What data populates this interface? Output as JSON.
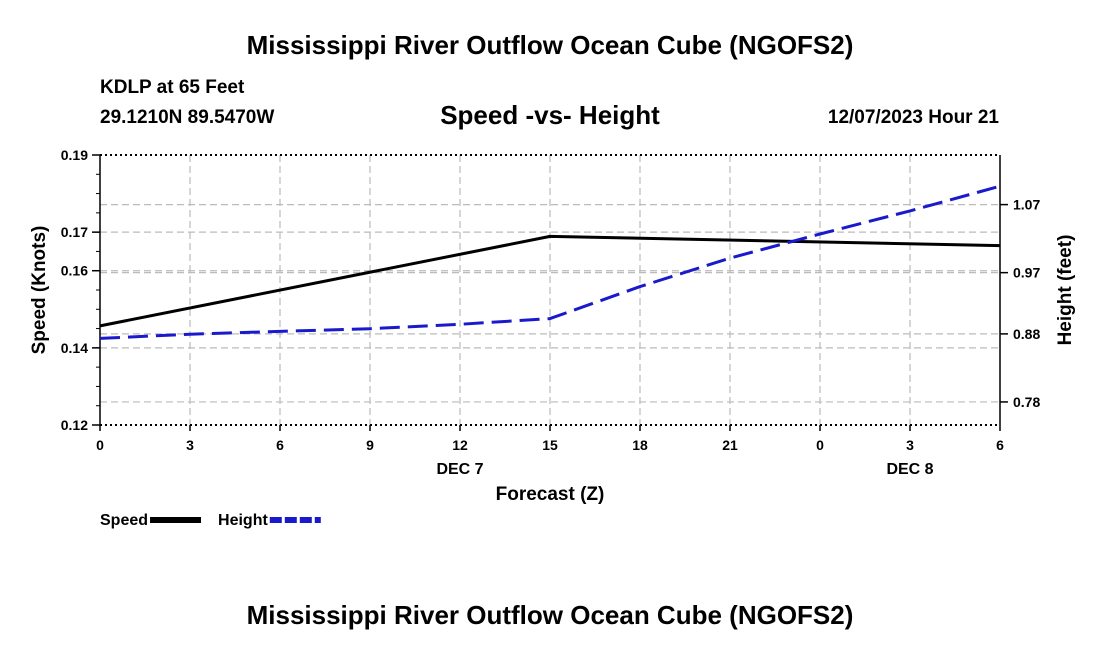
{
  "page": {
    "title": "Mississippi River Outflow Ocean Cube (NGOFS2)",
    "footer_title": "Mississippi River Outflow Ocean Cube (NGOFS2)"
  },
  "header": {
    "station": "KDLP at 65 Feet",
    "coords": "29.1210N  89.5470W",
    "subtitle": "Speed -vs- Height",
    "datetime": "12/07/2023 Hour 21"
  },
  "chart_data": {
    "type": "line",
    "title": "Speed -vs- Height",
    "xlabel": "Forecast (Z)",
    "ylabel_left": "Speed (Knots)",
    "ylabel_right": "Height (feet)",
    "x_ticks": [
      "0",
      "3",
      "6",
      "9",
      "12",
      "15",
      "18",
      "21",
      "0",
      "3",
      "6"
    ],
    "x_range_hours": [
      0,
      30
    ],
    "day_labels": [
      {
        "label": "DEC 7",
        "hour": 12
      },
      {
        "label": "DEC 8",
        "hour": 27
      }
    ],
    "y_left": {
      "range": [
        0.12,
        0.19
      ],
      "ticks": [
        0.12,
        0.14,
        0.16,
        0.17,
        0.19
      ],
      "tick_labels": [
        "0.12",
        "0.14",
        "0.16",
        "0.17",
        "0.19"
      ]
    },
    "y_right": {
      "range": [
        0.7461,
        1.1429
      ],
      "ticks": [
        0.78,
        0.88,
        0.97,
        1.07
      ],
      "tick_labels": [
        "0.78",
        "0.88",
        "0.97",
        "1.07"
      ]
    },
    "grid": true,
    "series": [
      {
        "name": "Speed",
        "axis": "left",
        "style": "solid",
        "color": "#000000",
        "x": [
          0,
          15,
          30
        ],
        "values": [
          0.1457,
          0.1689,
          0.1665
        ]
      },
      {
        "name": "Height",
        "axis": "right",
        "style": "dashed",
        "color": "#1a1acc",
        "x": [
          0,
          3,
          6,
          9,
          12,
          15,
          18,
          21,
          24,
          27,
          30
        ],
        "values": [
          0.8733,
          0.8796,
          0.8837,
          0.8876,
          0.8941,
          0.9024,
          0.9495,
          0.9914,
          1.0268,
          1.0608,
          1.097
        ]
      }
    ],
    "legend": [
      {
        "label": "Speed",
        "style": "solid",
        "color": "#000000"
      },
      {
        "label": "Height",
        "style": "dashed",
        "color": "#1a1acc"
      }
    ]
  }
}
